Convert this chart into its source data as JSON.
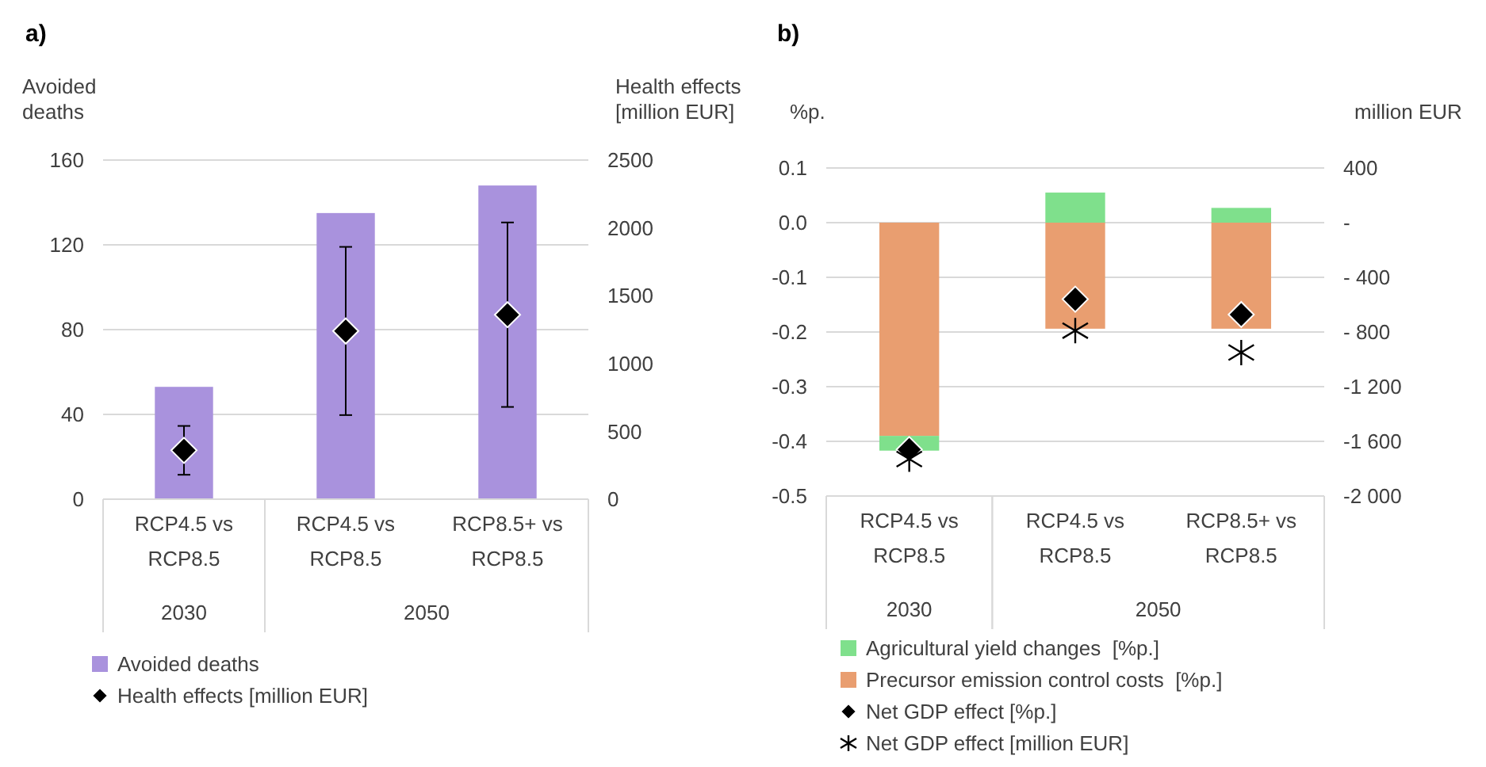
{
  "chart_data": [
    {
      "type": "bar",
      "title": "a)",
      "ylabel": "Avoided deaths",
      "y2label": "Health effects [million EUR]",
      "categories": [
        "RCP4.5 vs RCP8.5",
        "RCP4.5 vs RCP8.5",
        "RCP8.5+ vs RCP8.5"
      ],
      "annotations": [
        "2030",
        "2050"
      ],
      "series": [
        {
          "name": "Avoided deaths",
          "color": "#a992dd",
          "values": [
            53,
            135,
            148
          ]
        },
        {
          "name": "Health effects [million EUR]",
          "type": "scatter",
          "axis": "y2",
          "marker": "diamond",
          "color": "#000000",
          "values": [
            360,
            1240,
            1360
          ],
          "errors": [
            [
              180,
              540
            ],
            [
              620,
              1860
            ],
            [
              680,
              2040
            ]
          ]
        }
      ],
      "ylim": [
        0,
        160
      ],
      "yticks": [
        0,
        40,
        80,
        120,
        160
      ],
      "y2lim": [
        0,
        2500
      ],
      "y2ticks": [
        0,
        500,
        1000,
        1500,
        2000,
        2500
      ],
      "grid": "y",
      "legend": "bottom"
    },
    {
      "type": "bar",
      "title": "b)",
      "ylabel": "%p.",
      "y2label": "million EUR",
      "stacked": true,
      "categories": [
        "RCP4.5 vs RCP8.5",
        "RCP4.5 vs RCP8.5",
        "RCP8.5+ vs RCP8.5"
      ],
      "annotations": [
        "2030",
        "2050"
      ],
      "series": [
        {
          "name": "Precursor emission control costs  [%p.]",
          "color": "#e99e70",
          "values": [
            -0.39,
            -0.194,
            -0.194
          ]
        },
        {
          "name": "Agricultural yield changes  [%p.]",
          "color": "#7fe08c",
          "values": [
            -0.027,
            0.055,
            0.027
          ]
        },
        {
          "name": "Net GDP effect [%p.]",
          "type": "scatter",
          "marker": "diamond",
          "color": "#000000",
          "values": [
            -0.415,
            -0.14,
            -0.168
          ]
        },
        {
          "name": "Net GDP effect [million EUR]",
          "type": "scatter",
          "axis": "y2",
          "marker": "cross",
          "color": "#000000",
          "values": [
            -1730,
            -790,
            -950
          ]
        }
      ],
      "ylim": [
        -0.5,
        0.1
      ],
      "yticks": [
        {
          "value": -0.5,
          "label": "-0.5"
        },
        {
          "value": -0.4,
          "label": "-0.4"
        },
        {
          "value": -0.3,
          "label": "-0.3"
        },
        {
          "value": -0.2,
          "label": "-0.2"
        },
        {
          "value": -0.1,
          "label": "-0.1"
        },
        {
          "value": 0,
          "label": "0.0"
        },
        {
          "value": 0.1,
          "label": "0.1"
        }
      ],
      "y2lim": [
        -2000,
        400
      ],
      "y2ticks": [
        {
          "value": -2000,
          "label": "-2 000"
        },
        {
          "value": -1600,
          "label": "-1 600"
        },
        {
          "value": -1200,
          "label": "-1 200"
        },
        {
          "value": -800,
          "label": "- 800"
        },
        {
          "value": -400,
          "label": "- 400"
        },
        {
          "value": 0,
          "label": "-"
        },
        {
          "value": 400,
          "label": "400"
        }
      ],
      "grid": "y",
      "legend": "bottom"
    }
  ]
}
